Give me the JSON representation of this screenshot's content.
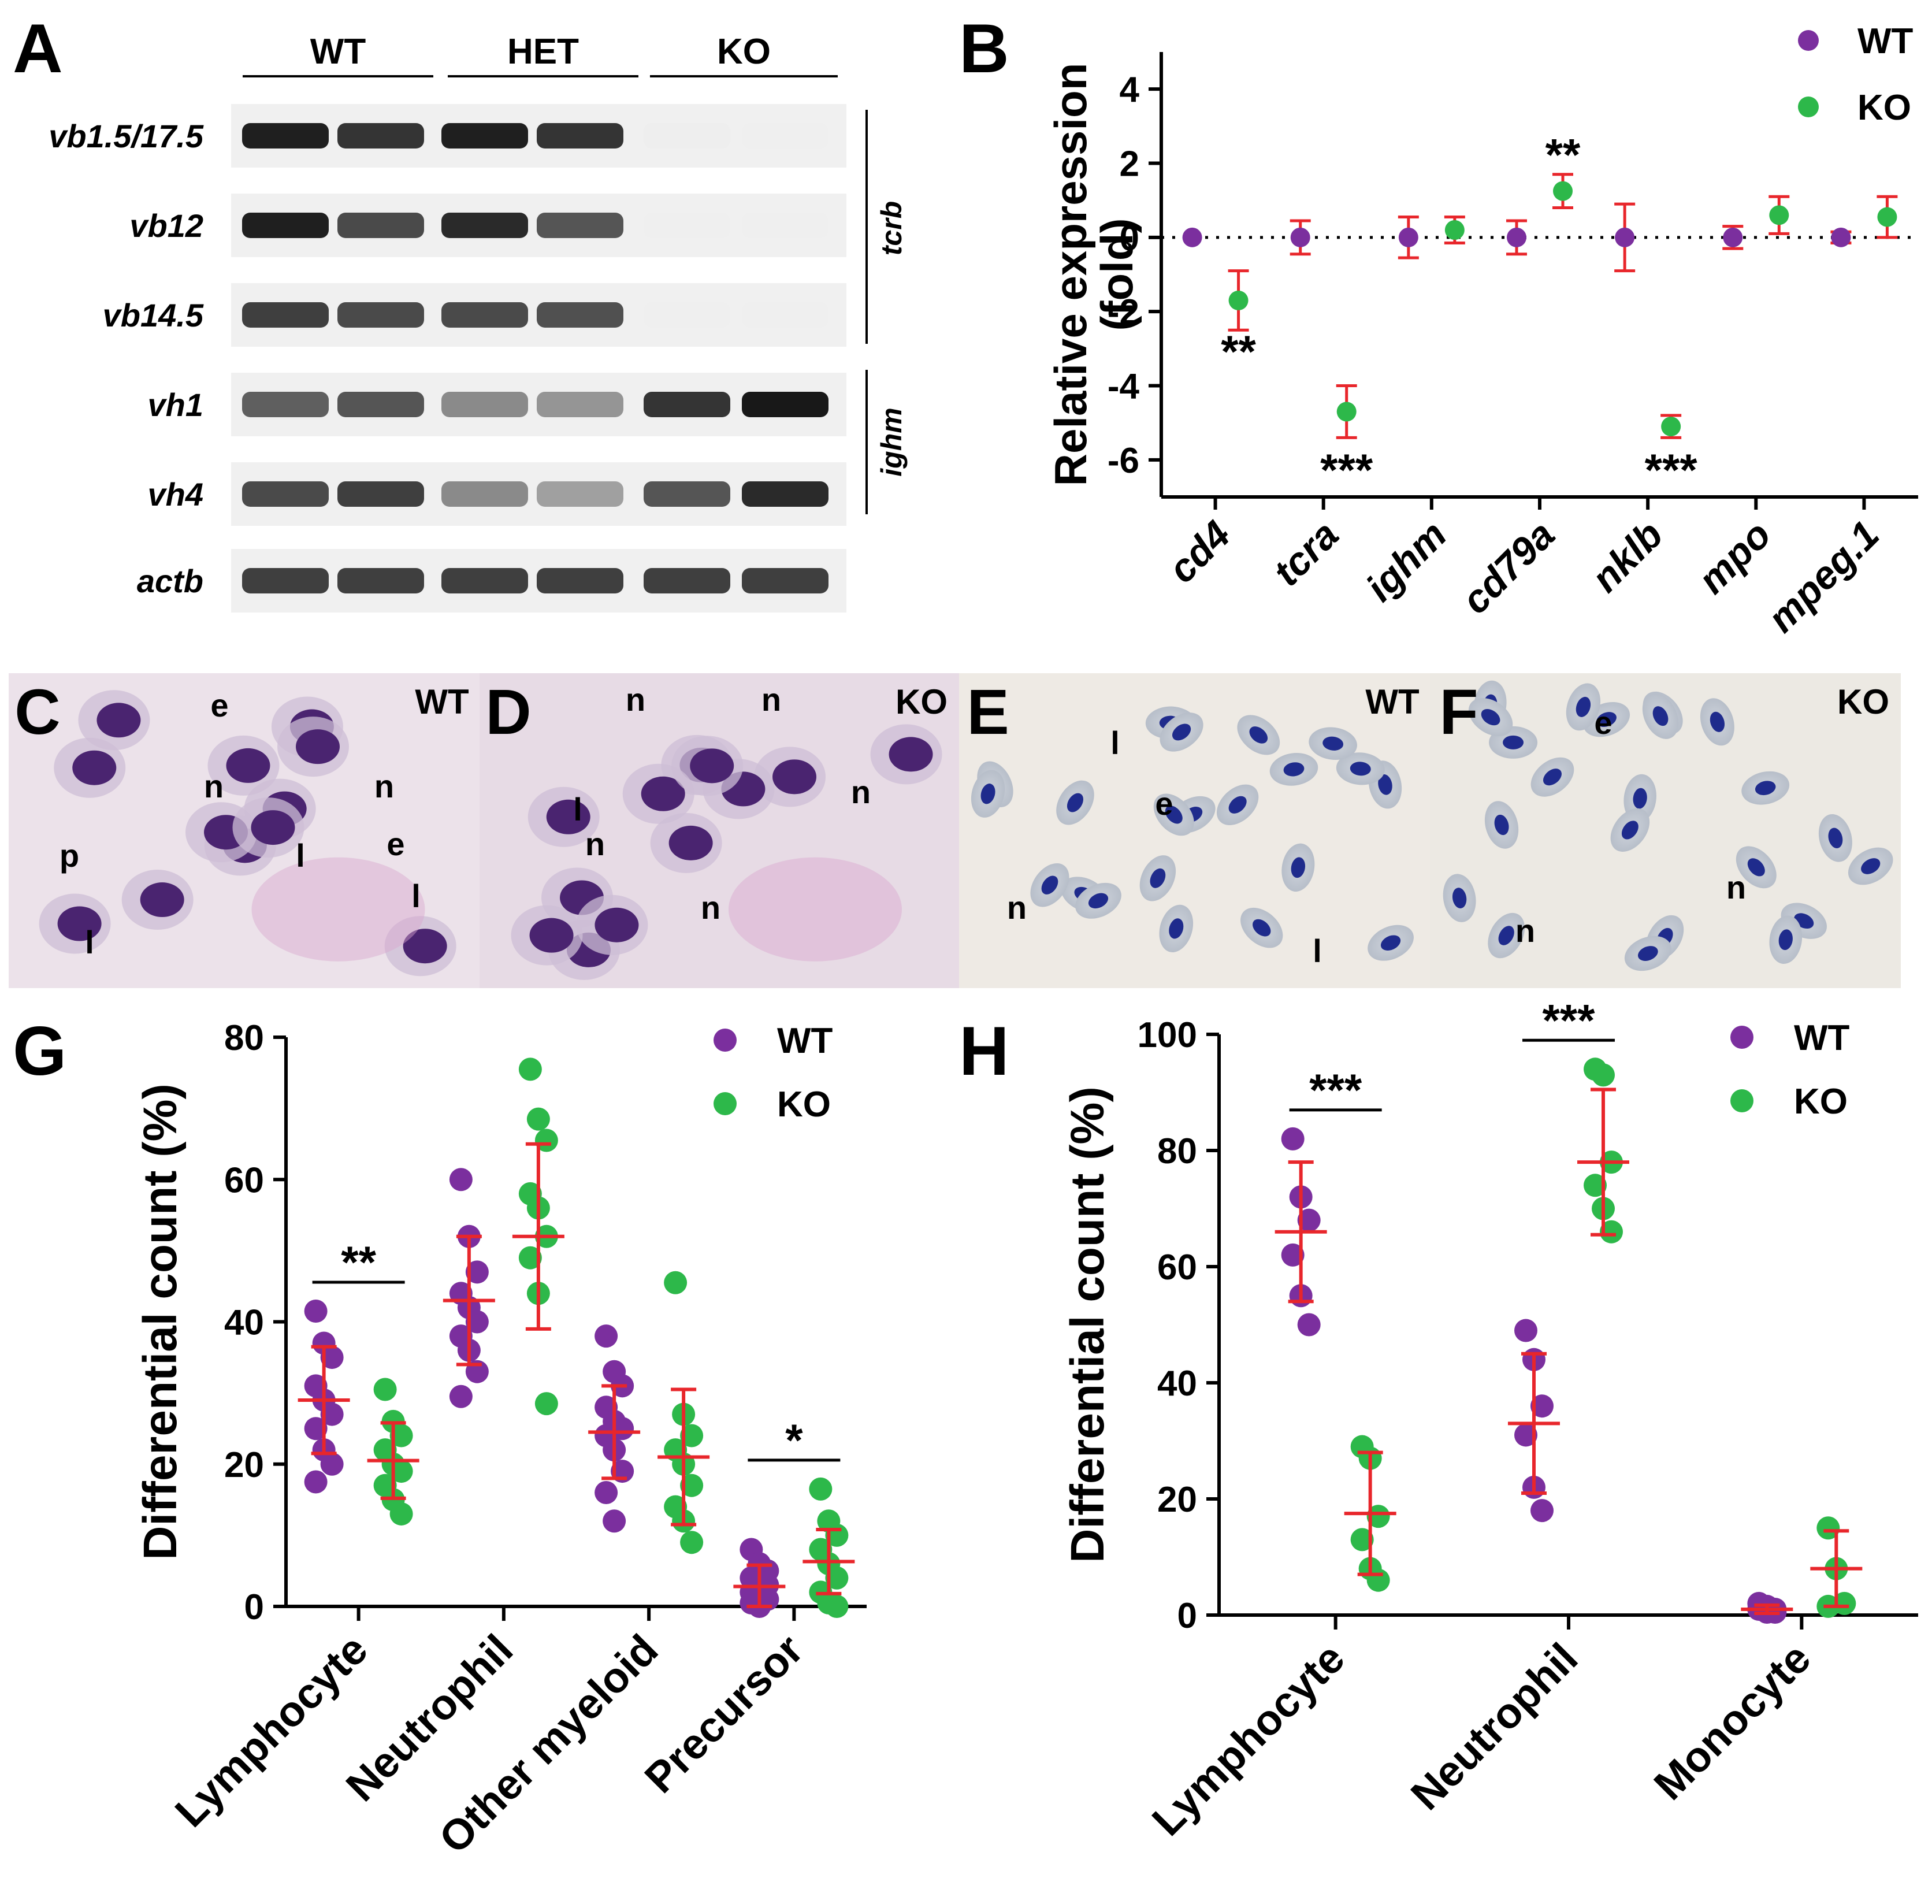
{
  "panel_labels": {
    "A": "A",
    "B": "B",
    "C": "C",
    "D": "D",
    "E": "E",
    "F": "F",
    "G": "G",
    "H": "H"
  },
  "gel": {
    "groups": [
      "WT",
      "HET",
      "KO"
    ],
    "rows": [
      {
        "label": "vb1.5/17.5",
        "bands": [
          0.95,
          0.85,
          0.95,
          0.85,
          0.02,
          0.01
        ]
      },
      {
        "label": "vb12",
        "bands": [
          0.95,
          0.75,
          0.9,
          0.7,
          0.01,
          0.01
        ]
      },
      {
        "label": "vb14.5",
        "bands": [
          0.8,
          0.75,
          0.75,
          0.72,
          0.01,
          0.0
        ]
      },
      {
        "label": "vh1",
        "bands": [
          0.65,
          0.7,
          0.45,
          0.4,
          0.85,
          0.98
        ]
      },
      {
        "label": "vh4",
        "bands": [
          0.75,
          0.8,
          0.45,
          0.35,
          0.7,
          0.9
        ]
      },
      {
        "label": "actb",
        "bands": [
          0.8,
          0.8,
          0.8,
          0.8,
          0.8,
          0.8
        ]
      }
    ],
    "bracket_tcrb": "tcrb",
    "bracket_ighm": "ighm"
  },
  "micrographs": [
    {
      "panel": "C",
      "tag": "WT",
      "labels": [
        "e",
        "n",
        "n",
        "p",
        "l",
        "e",
        "l",
        "l"
      ]
    },
    {
      "panel": "D",
      "tag": "KO",
      "labels": [
        "n",
        "n",
        "l",
        "n",
        "n",
        "n"
      ]
    },
    {
      "panel": "E",
      "tag": "WT",
      "labels": [
        "l",
        "e",
        "n",
        "l"
      ]
    },
    {
      "panel": "F",
      "tag": "KO",
      "labels": [
        "e",
        "n",
        "n"
      ]
    }
  ],
  "chart_data": [
    {
      "panel": "B",
      "type": "scatter",
      "ylabel": "Relative expression (fold)",
      "xlabel": "",
      "ylim": [
        -7,
        5
      ],
      "yticks": [
        -6,
        -4,
        -2,
        0,
        2,
        4
      ],
      "categories": [
        "cd4",
        "tcra",
        "ighm",
        "cd79a",
        "nklb",
        "mpo",
        "mpeg.1"
      ],
      "legend": [
        "WT",
        "KO"
      ],
      "series": [
        {
          "name": "WT",
          "color": "#7B2F9E",
          "values": [
            0,
            0,
            0,
            0,
            0,
            0,
            0
          ],
          "err": [
            0,
            0.45,
            0.55,
            0.45,
            0.9,
            0.3,
            0.15
          ]
        },
        {
          "name": "KO",
          "color": "#2DB84A",
          "values": [
            -1.7,
            -4.7,
            0.2,
            1.25,
            -5.1,
            0.6,
            0.55
          ],
          "err": [
            0.8,
            0.7,
            0.35,
            0.45,
            0.3,
            0.5,
            0.55
          ]
        }
      ],
      "annotations": [
        {
          "category": "cd4",
          "text": "**",
          "value": -3.1
        },
        {
          "category": "tcra",
          "text": "***",
          "value": -6.3
        },
        {
          "category": "cd79a",
          "text": "**",
          "value": 2.2
        },
        {
          "category": "nklb",
          "text": "***",
          "value": -6.3
        }
      ]
    },
    {
      "panel": "G",
      "type": "scatter",
      "ylabel": "Differential count (%)",
      "xlabel": "",
      "ylim": [
        0,
        80
      ],
      "yticks": [
        0,
        20,
        40,
        60,
        80
      ],
      "categories": [
        "Lymphocyte",
        "Neutrophil",
        "Other myeloid",
        "Precursor"
      ],
      "legend": [
        "WT",
        "KO"
      ],
      "series": [
        {
          "name": "WT",
          "color": "#7B2F9E",
          "points": [
            [
              41.5,
              37,
              35,
              31,
              29,
              27,
              25,
              22,
              20,
              17.5
            ],
            [
              60,
              52,
              47,
              44,
              42,
              40,
              38,
              36,
              33,
              29.5
            ],
            [
              38,
              33,
              31,
              28,
              26,
              25,
              24,
              22,
              19,
              16,
              12
            ],
            [
              8,
              6,
              5,
              4,
              3.5,
              3,
              2,
              1.5,
              1,
              0.5,
              0
            ]
          ],
          "mean": [
            29,
            43,
            24.5,
            2.8
          ],
          "sd": [
            7.5,
            9,
            6.5,
            3
          ]
        },
        {
          "name": "KO",
          "color": "#2DB84A",
          "points": [
            [
              30.5,
              26,
              24,
              22,
              20,
              19,
              17,
              15,
              13
            ],
            [
              75.5,
              68.5,
              65.5,
              58,
              56,
              52,
              49,
              44,
              28.5
            ],
            [
              45.5,
              27,
              24,
              22,
              20,
              17,
              14,
              12,
              9
            ],
            [
              16.5,
              12,
              10,
              8,
              6,
              4,
              2,
              0.5,
              0
            ]
          ],
          "mean": [
            20.5,
            52,
            21,
            6.3
          ],
          "sd": [
            5.3,
            13,
            9.5,
            4.5
          ]
        }
      ],
      "annotations": [
        {
          "category": "Lymphocyte",
          "text": "**"
        },
        {
          "category": "Precursor",
          "text": "*"
        }
      ]
    },
    {
      "panel": "H",
      "type": "scatter",
      "ylabel": "Differential count (%)",
      "xlabel": "",
      "ylim": [
        0,
        100
      ],
      "yticks": [
        0,
        20,
        40,
        60,
        80,
        100
      ],
      "categories": [
        "Lymphocyte",
        "Neutrophil",
        "Monocyte"
      ],
      "legend": [
        "WT",
        "KO"
      ],
      "series": [
        {
          "name": "WT",
          "color": "#7B2F9E",
          "points": [
            [
              82,
              72,
              68,
              62,
              55,
              50
            ],
            [
              49,
              44,
              36,
              31,
              22,
              18
            ],
            [
              2,
              1.5,
              1,
              1,
              0.5,
              0.5
            ]
          ],
          "mean": [
            66,
            33,
            1
          ],
          "sd": [
            12,
            12,
            0.7
          ]
        },
        {
          "name": "KO",
          "color": "#2DB84A",
          "points": [
            [
              29,
              27,
              17,
              13,
              8,
              6
            ],
            [
              94,
              93,
              78,
              74,
              70,
              66
            ],
            [
              15,
              8,
              2,
              1.5
            ]
          ],
          "mean": [
            17.5,
            78,
            8
          ],
          "sd": [
            10.5,
            12.5,
            6.5
          ]
        }
      ],
      "annotations": [
        {
          "category": "Lymphocyte",
          "text": "***"
        },
        {
          "category": "Neutrophil",
          "text": "***"
        }
      ]
    }
  ]
}
